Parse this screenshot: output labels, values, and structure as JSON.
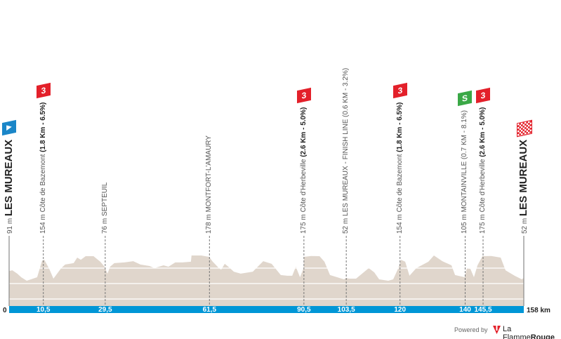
{
  "chart_data": {
    "type": "area",
    "xlabel_unit": "km",
    "x_start_label": "0",
    "x_end_label": "158 km",
    "xlim": [
      0,
      158
    ],
    "colors": {
      "profile": "#e0d6cc",
      "km_bar": "#0096d6",
      "climb": "#e3202a",
      "sprint": "#3aa846",
      "start": "#1a86c8"
    },
    "profile": [
      [
        0,
        91
      ],
      [
        1,
        95
      ],
      [
        2.5,
        76
      ],
      [
        3.7,
        56
      ],
      [
        5.4,
        36
      ],
      [
        8.6,
        56
      ],
      [
        10.1,
        148
      ],
      [
        10.8,
        154
      ],
      [
        12.3,
        103
      ],
      [
        13.6,
        48
      ],
      [
        16,
        107
      ],
      [
        17.2,
        127
      ],
      [
        19.8,
        135
      ],
      [
        20.9,
        166
      ],
      [
        22,
        154
      ],
      [
        23.5,
        174
      ],
      [
        25.9,
        174
      ],
      [
        28,
        143
      ],
      [
        29.3,
        115
      ],
      [
        30.2,
        76
      ],
      [
        31,
        115
      ],
      [
        32.3,
        135
      ],
      [
        35.4,
        139
      ],
      [
        38.1,
        146
      ],
      [
        40.3,
        127
      ],
      [
        43.1,
        119
      ],
      [
        44.6,
        107
      ],
      [
        47.4,
        123
      ],
      [
        48.9,
        115
      ],
      [
        51,
        139
      ],
      [
        53.2,
        139
      ],
      [
        55.8,
        143
      ],
      [
        56,
        178
      ],
      [
        59,
        178
      ],
      [
        61.4,
        170
      ],
      [
        62.5,
        143
      ],
      [
        64.4,
        107
      ],
      [
        65.1,
        99
      ],
      [
        66.2,
        131
      ],
      [
        67.3,
        115
      ],
      [
        69,
        87
      ],
      [
        71.1,
        76
      ],
      [
        74.8,
        87
      ],
      [
        78,
        146
      ],
      [
        80.6,
        131
      ],
      [
        83.4,
        68
      ],
      [
        85.4,
        64
      ],
      [
        86.9,
        64
      ],
      [
        88,
        115
      ],
      [
        89.3,
        56
      ],
      [
        90.4,
        107
      ],
      [
        90.5,
        170
      ],
      [
        92.7,
        175
      ],
      [
        95.3,
        174
      ],
      [
        96.8,
        143
      ],
      [
        98.5,
        68
      ],
      [
        102.8,
        44
      ],
      [
        103.5,
        52
      ],
      [
        104.3,
        48
      ],
      [
        106.5,
        48
      ],
      [
        110.4,
        107
      ],
      [
        112.1,
        83
      ],
      [
        113.6,
        44
      ],
      [
        116.4,
        36
      ],
      [
        117.9,
        44
      ],
      [
        119.4,
        103
      ],
      [
        120.3,
        154
      ],
      [
        121.6,
        143
      ],
      [
        122.9,
        64
      ],
      [
        125,
        107
      ],
      [
        128.7,
        143
      ],
      [
        130.4,
        178
      ],
      [
        133,
        146
      ],
      [
        135.8,
        123
      ],
      [
        136.9,
        68
      ],
      [
        139.9,
        56
      ],
      [
        140.5,
        105
      ],
      [
        141.6,
        103
      ],
      [
        142.7,
        56
      ],
      [
        143.8,
        123
      ],
      [
        145.3,
        174
      ],
      [
        148,
        175
      ],
      [
        150.9,
        166
      ],
      [
        152.4,
        95
      ],
      [
        155.2,
        64
      ],
      [
        157.4,
        44
      ],
      [
        158,
        52
      ]
    ],
    "checkpoints": [
      {
        "km": 0,
        "km_label": "",
        "alt": "91 m",
        "name": "LES MUREAUX",
        "detail": "",
        "marker": "start",
        "kind": "town"
      },
      {
        "km": 10.5,
        "km_label": "10,5",
        "alt": "154 m",
        "name": "Côte de Bazemont",
        "detail": "(1.8 Km - 6.5%)",
        "marker": "3",
        "kind": "climb"
      },
      {
        "km": 29.5,
        "km_label": "29,5",
        "alt": "76 m",
        "name": "SEPTEUIL",
        "detail": "",
        "marker": "",
        "kind": "point"
      },
      {
        "km": 61.5,
        "km_label": "61,5",
        "alt": "178 m",
        "name": "MONTFORT-L'AMAURY",
        "detail": "",
        "marker": "",
        "kind": "point"
      },
      {
        "km": 90.5,
        "km_label": "90,5",
        "alt": "175 m",
        "name": "Côte d'Herbeville",
        "detail": "(2.6 Km - 5.0%)",
        "marker": "3",
        "kind": "climb"
      },
      {
        "km": 103.5,
        "km_label": "103,5",
        "alt": "52 m",
        "name": "LES MUREAUX - FINISH LINE (0.6 KM - 3.2%)",
        "detail": "",
        "marker": "",
        "kind": "point"
      },
      {
        "km": 120,
        "km_label": "120",
        "alt": "154 m",
        "name": "Côte de Bazemont",
        "detail": "(1.8 Km - 6.5%)",
        "marker": "3",
        "kind": "climb"
      },
      {
        "km": 140,
        "km_label": "140",
        "alt": "105 m",
        "name": "MONTAINVILLE (0.7 KM - 8.1%)",
        "detail": "",
        "marker": "S",
        "kind": "sprint"
      },
      {
        "km": 145.5,
        "km_label": "145,5",
        "alt": "175 m",
        "name": "Côte d'Herbeville",
        "detail": "(2.6 Km - 5.0%)",
        "marker": "3",
        "kind": "climb"
      },
      {
        "km": 158,
        "km_label": "",
        "alt": "52 m",
        "name": "LES MUREAUX",
        "detail": "",
        "marker": "finish",
        "kind": "town"
      }
    ]
  },
  "footer": {
    "powered_by": "Powered by",
    "brand_regular": "La Flamme",
    "brand_bold": "Rouge"
  }
}
